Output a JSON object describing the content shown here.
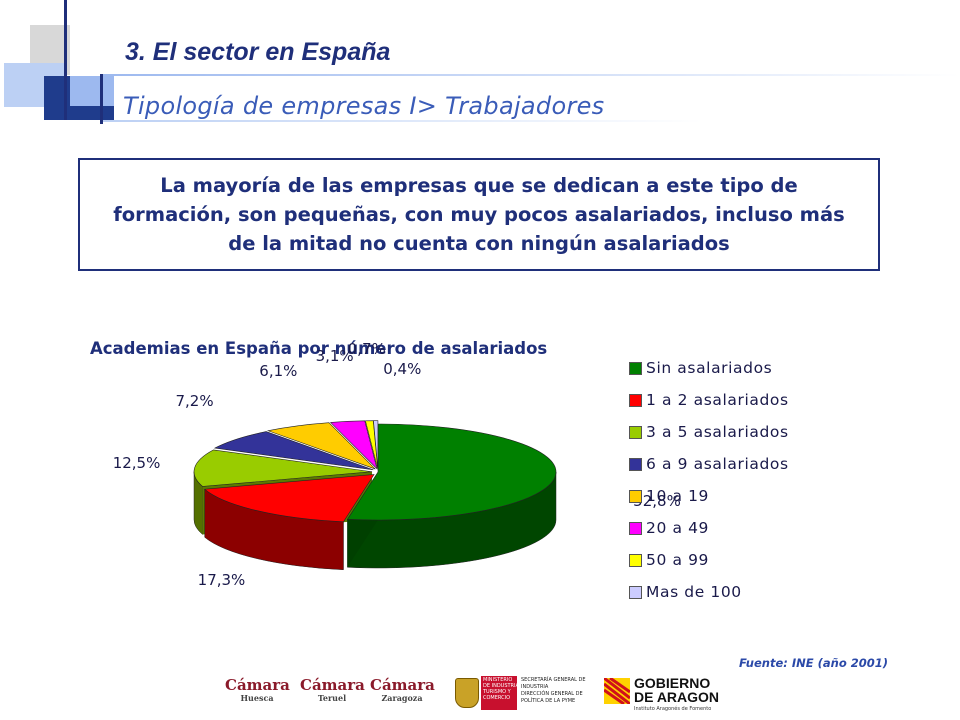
{
  "header": {
    "title": "3. El sector en España",
    "subtitle": "Tipología de empresas I> Trabajadores"
  },
  "callout": {
    "text": "La mayoría de las empresas que se dedican a este tipo de formación, son pequeñas, con muy pocos asalariados, incluso más de la mitad no cuenta con ningún asalariados"
  },
  "chart_data": {
    "type": "pie",
    "title": "Academias en España por número de asalariados",
    "categories": [
      "Sin asalariados",
      "1 a 2 asalariados",
      "3 a 5 asalariados",
      "6 a 9 asalariados",
      "10 a 19",
      "20 a 49",
      "50 a 99",
      "Mas de 100"
    ],
    "values": [
      52.8,
      17.3,
      12.5,
      7.2,
      6.1,
      3.1,
      0.7,
      0.4
    ],
    "labels": [
      "52,8%",
      "17,3%",
      "12,5%",
      "7,2%",
      "6,1%",
      "3,1%",
      "0,7%",
      "0,4%"
    ],
    "colors": [
      "#008000",
      "#ff0000",
      "#99cc00",
      "#333399",
      "#ffcc00",
      "#ff00ff",
      "#ffff00",
      "#ccccff"
    ],
    "legend_position": "right",
    "style": "3d-exploded"
  },
  "footer": {
    "source": "Fuente: INE (año 2001)",
    "logos": [
      {
        "name": "Cámara",
        "sub": "Huesca"
      },
      {
        "name": "Cámara",
        "sub": "Teruel"
      },
      {
        "name": "Cámara",
        "sub": "Zaragoza"
      }
    ],
    "ministry_lines": [
      "MINISTERIO",
      "DE INDUSTRIA,",
      "TURISMO Y",
      "COMERCIO"
    ],
    "secretaria_lines": [
      "SECRETARÍA GENERAL DE",
      "INDUSTRIA",
      "DIRECCIÓN GENERAL DE",
      "POLÍTICA DE LA PYME"
    ],
    "gobierno_lines": [
      "GOBIERNO",
      "DE ARAGON"
    ],
    "instituto": "Instituto Aragonés de Fomento"
  }
}
